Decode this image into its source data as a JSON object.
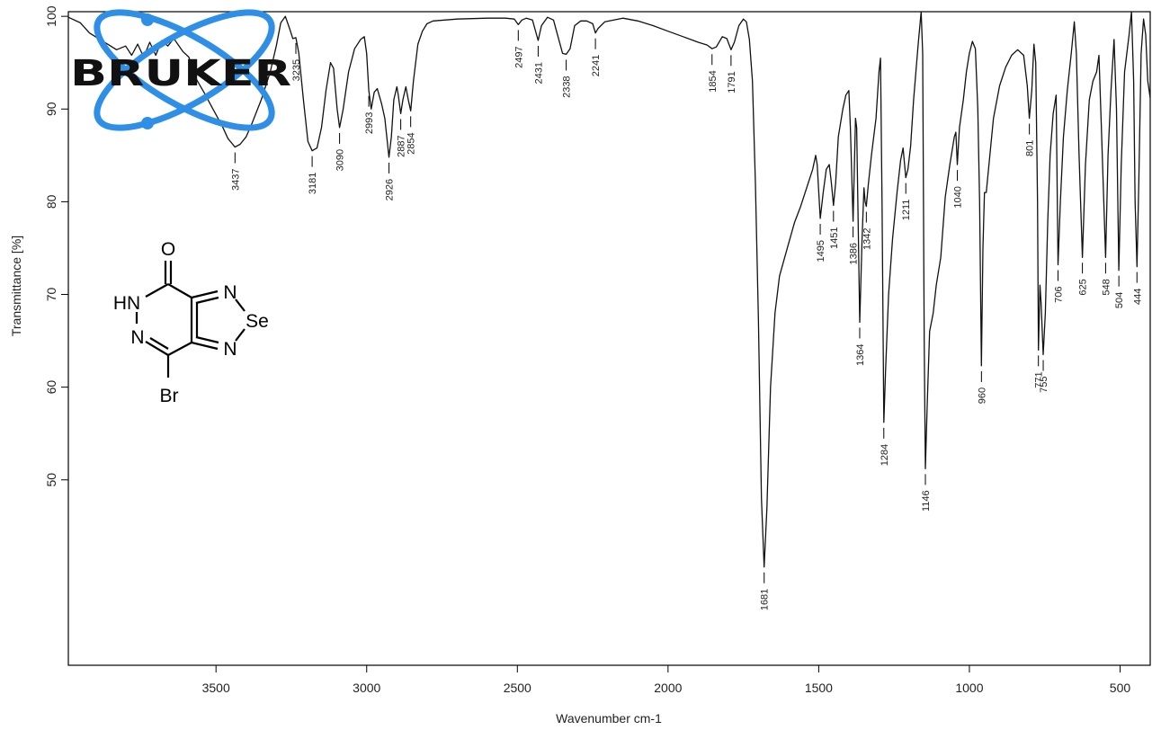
{
  "chart_data": {
    "type": "line",
    "xlabel": "Wavenumber cm-1",
    "ylabel": "Transmittance [%]",
    "xlim": [
      3990,
      400
    ],
    "ylim": [
      30,
      100.5
    ],
    "x_reversed": true,
    "x_ticks": [
      3500,
      3000,
      2500,
      2000,
      1500,
      1000,
      500
    ],
    "y_ticks": [
      50,
      60,
      70,
      80,
      90,
      100
    ],
    "grid": false,
    "series": [
      {
        "points": [
          [
            3990,
            99.9
          ],
          [
            3950,
            99.3
          ],
          [
            3920,
            98.2
          ],
          [
            3890,
            97.6
          ],
          [
            3860,
            97.0
          ],
          [
            3830,
            96.4
          ],
          [
            3800,
            96.8
          ],
          [
            3780,
            95.8
          ],
          [
            3760,
            97.0
          ],
          [
            3740,
            95.6
          ],
          [
            3720,
            97.2
          ],
          [
            3700,
            95.8
          ],
          [
            3680,
            97.4
          ],
          [
            3660,
            96.8
          ],
          [
            3640,
            97.6
          ],
          [
            3610,
            96.2
          ],
          [
            3590,
            95.6
          ],
          [
            3570,
            93.5
          ],
          [
            3540,
            91.8
          ],
          [
            3510,
            90.0
          ],
          [
            3480,
            88.2
          ],
          [
            3460,
            86.8
          ],
          [
            3437,
            85.9
          ],
          [
            3420,
            86.2
          ],
          [
            3400,
            87.0
          ],
          [
            3380,
            88.5
          ],
          [
            3350,
            91.0
          ],
          [
            3320,
            94.0
          ],
          [
            3300,
            96.8
          ],
          [
            3285,
            99.3
          ],
          [
            3270,
            100.0
          ],
          [
            3255,
            98.6
          ],
          [
            3245,
            97.6
          ],
          [
            3235,
            97.7
          ],
          [
            3225,
            96.0
          ],
          [
            3210,
            91.0
          ],
          [
            3195,
            86.5
          ],
          [
            3181,
            85.5
          ],
          [
            3165,
            85.8
          ],
          [
            3150,
            88.0
          ],
          [
            3135,
            92.0
          ],
          [
            3120,
            95.0
          ],
          [
            3110,
            94.4
          ],
          [
            3098,
            90.0
          ],
          [
            3090,
            88.0
          ],
          [
            3078,
            90.0
          ],
          [
            3060,
            94.0
          ],
          [
            3040,
            96.5
          ],
          [
            3020,
            97.5
          ],
          [
            3008,
            97.8
          ],
          [
            3000,
            96.0
          ],
          [
            2993,
            92.0
          ],
          [
            2985,
            90.0
          ],
          [
            2975,
            91.8
          ],
          [
            2965,
            92.2
          ],
          [
            2950,
            90.5
          ],
          [
            2940,
            89.0
          ],
          [
            2926,
            84.8
          ],
          [
            2918,
            87.0
          ],
          [
            2910,
            91.0
          ],
          [
            2900,
            92.4
          ],
          [
            2895,
            91.5
          ],
          [
            2887,
            89.5
          ],
          [
            2880,
            91.0
          ],
          [
            2870,
            92.4
          ],
          [
            2862,
            91.0
          ],
          [
            2854,
            89.8
          ],
          [
            2845,
            93.0
          ],
          [
            2830,
            97.0
          ],
          [
            2815,
            98.4
          ],
          [
            2800,
            99.2
          ],
          [
            2780,
            99.5
          ],
          [
            2700,
            99.7
          ],
          [
            2600,
            99.8
          ],
          [
            2540,
            99.8
          ],
          [
            2510,
            99.7
          ],
          [
            2497,
            99.1
          ],
          [
            2485,
            99.6
          ],
          [
            2470,
            99.8
          ],
          [
            2450,
            99.6
          ],
          [
            2431,
            97.4
          ],
          [
            2420,
            99.0
          ],
          [
            2400,
            99.9
          ],
          [
            2380,
            99.6
          ],
          [
            2365,
            97.8
          ],
          [
            2350,
            96.0
          ],
          [
            2338,
            95.9
          ],
          [
            2325,
            96.5
          ],
          [
            2310,
            99.0
          ],
          [
            2290,
            99.5
          ],
          [
            2270,
            99.5
          ],
          [
            2250,
            99.2
          ],
          [
            2241,
            98.2
          ],
          [
            2232,
            98.7
          ],
          [
            2210,
            99.4
          ],
          [
            2150,
            99.8
          ],
          [
            2100,
            99.5
          ],
          [
            2050,
            99.0
          ],
          [
            2000,
            98.4
          ],
          [
            1950,
            97.8
          ],
          [
            1900,
            97.2
          ],
          [
            1870,
            96.9
          ],
          [
            1854,
            96.5
          ],
          [
            1840,
            96.7
          ],
          [
            1820,
            97.8
          ],
          [
            1805,
            97.6
          ],
          [
            1791,
            96.4
          ],
          [
            1780,
            97.2
          ],
          [
            1765,
            99.0
          ],
          [
            1750,
            99.7
          ],
          [
            1740,
            99.4
          ],
          [
            1730,
            97.5
          ],
          [
            1720,
            93.0
          ],
          [
            1710,
            82.0
          ],
          [
            1700,
            67.0
          ],
          [
            1690,
            48.0
          ],
          [
            1681,
            40.6
          ],
          [
            1672,
            47.0
          ],
          [
            1660,
            60.0
          ],
          [
            1645,
            68.0
          ],
          [
            1630,
            72.0
          ],
          [
            1600,
            75.5
          ],
          [
            1580,
            77.8
          ],
          [
            1560,
            79.5
          ],
          [
            1540,
            81.5
          ],
          [
            1520,
            83.5
          ],
          [
            1510,
            85.0
          ],
          [
            1505,
            84.0
          ],
          [
            1495,
            78.2
          ],
          [
            1485,
            81.0
          ],
          [
            1475,
            83.5
          ],
          [
            1465,
            84.0
          ],
          [
            1458,
            82.0
          ],
          [
            1451,
            79.6
          ],
          [
            1444,
            82.0
          ],
          [
            1435,
            87.0
          ],
          [
            1420,
            90.0
          ],
          [
            1410,
            91.5
          ],
          [
            1400,
            92.0
          ],
          [
            1395,
            88.0
          ],
          [
            1386,
            77.9
          ],
          [
            1378,
            89.0
          ],
          [
            1374,
            88.0
          ],
          [
            1364,
            67.0
          ],
          [
            1356,
            76.0
          ],
          [
            1350,
            81.5
          ],
          [
            1346,
            80.0
          ],
          [
            1342,
            79.5
          ],
          [
            1335,
            82.0
          ],
          [
            1325,
            85.0
          ],
          [
            1310,
            89.0
          ],
          [
            1300,
            94.0
          ],
          [
            1295,
            95.5
          ],
          [
            1290,
            80.0
          ],
          [
            1284,
            56.2
          ],
          [
            1278,
            62.0
          ],
          [
            1268,
            70.0
          ],
          [
            1255,
            76.0
          ],
          [
            1240,
            81.0
          ],
          [
            1228,
            84.5
          ],
          [
            1220,
            85.8
          ],
          [
            1211,
            82.6
          ],
          [
            1204,
            83.5
          ],
          [
            1195,
            86.0
          ],
          [
            1185,
            91.0
          ],
          [
            1170,
            97.0
          ],
          [
            1160,
            100.5
          ],
          [
            1155,
            96.0
          ],
          [
            1150,
            65.0
          ],
          [
            1146,
            51.2
          ],
          [
            1140,
            58.0
          ],
          [
            1132,
            66.0
          ],
          [
            1120,
            68.0
          ],
          [
            1110,
            71.0
          ],
          [
            1095,
            74.0
          ],
          [
            1080,
            80.5
          ],
          [
            1065,
            84.0
          ],
          [
            1050,
            87.0
          ],
          [
            1045,
            87.5
          ],
          [
            1040,
            84.0
          ],
          [
            1033,
            88.0
          ],
          [
            1020,
            91.0
          ],
          [
            1010,
            94.0
          ],
          [
            1000,
            96.0
          ],
          [
            990,
            97.3
          ],
          [
            980,
            96.5
          ],
          [
            972,
            90.0
          ],
          [
            966,
            80.0
          ],
          [
            960,
            62.3
          ],
          [
            955,
            75.0
          ],
          [
            950,
            81.0
          ],
          [
            944,
            81.0
          ],
          [
            935,
            84.0
          ],
          [
            920,
            89.0
          ],
          [
            900,
            92.5
          ],
          [
            880,
            94.5
          ],
          [
            860,
            95.8
          ],
          [
            840,
            96.4
          ],
          [
            820,
            95.8
          ],
          [
            808,
            92.5
          ],
          [
            801,
            89.0
          ],
          [
            793,
            92.0
          ],
          [
            786,
            97.0
          ],
          [
            780,
            95.0
          ],
          [
            774,
            80.0
          ],
          [
            771,
            64.0
          ],
          [
            766,
            71.0
          ],
          [
            762,
            69.0
          ],
          [
            755,
            63.5
          ],
          [
            748,
            68.0
          ],
          [
            740,
            78.0
          ],
          [
            732,
            85.0
          ],
          [
            722,
            89.5
          ],
          [
            712,
            91.5
          ],
          [
            706,
            73.2
          ],
          [
            698,
            80.0
          ],
          [
            688,
            87.0
          ],
          [
            675,
            92.0
          ],
          [
            662,
            96.0
          ],
          [
            652,
            99.4
          ],
          [
            645,
            96.0
          ],
          [
            636,
            85.0
          ],
          [
            625,
            74.0
          ],
          [
            615,
            84.0
          ],
          [
            602,
            91.0
          ],
          [
            590,
            93.0
          ],
          [
            578,
            94.0
          ],
          [
            570,
            95.8
          ],
          [
            562,
            88.0
          ],
          [
            548,
            74.0
          ],
          [
            540,
            85.0
          ],
          [
            530,
            92.0
          ],
          [
            520,
            97.5
          ],
          [
            512,
            90.0
          ],
          [
            504,
            72.6
          ],
          [
            496,
            84.0
          ],
          [
            485,
            94.0
          ],
          [
            470,
            98.0
          ],
          [
            462,
            100.5
          ],
          [
            455,
            93.0
          ],
          [
            450,
            80.0
          ],
          [
            444,
            73.0
          ],
          [
            438,
            82.0
          ],
          [
            430,
            96.0
          ],
          [
            422,
            99.7
          ],
          [
            415,
            98.0
          ],
          [
            408,
            93.0
          ],
          [
            400,
            91.2
          ]
        ]
      }
    ],
    "peaks": [
      {
        "x": 3437,
        "y": 85.9,
        "label": "3437"
      },
      {
        "x": 3235,
        "y": 97.7,
        "label": "3235"
      },
      {
        "x": 3181,
        "y": 85.5,
        "label": "3181"
      },
      {
        "x": 3090,
        "y": 88.0,
        "label": "3090"
      },
      {
        "x": 2993,
        "y": 92.0,
        "label": "2993"
      },
      {
        "x": 2926,
        "y": 84.8,
        "label": "2926"
      },
      {
        "x": 2887,
        "y": 89.5,
        "label": "2887"
      },
      {
        "x": 2854,
        "y": 89.8,
        "label": "2854"
      },
      {
        "x": 2497,
        "y": 99.1,
        "label": "2497"
      },
      {
        "x": 2431,
        "y": 97.4,
        "label": "2431"
      },
      {
        "x": 2338,
        "y": 95.9,
        "label": "2338"
      },
      {
        "x": 2241,
        "y": 98.2,
        "label": "2241"
      },
      {
        "x": 1854,
        "y": 96.5,
        "label": "1854"
      },
      {
        "x": 1791,
        "y": 96.4,
        "label": "1791"
      },
      {
        "x": 1681,
        "y": 40.6,
        "label": "1681"
      },
      {
        "x": 1495,
        "y": 78.2,
        "label": "1495"
      },
      {
        "x": 1451,
        "y": 79.6,
        "label": "1451"
      },
      {
        "x": 1386,
        "y": 77.9,
        "label": "1386"
      },
      {
        "x": 1364,
        "y": 67.0,
        "label": "1364"
      },
      {
        "x": 1342,
        "y": 79.5,
        "label": "1342"
      },
      {
        "x": 1284,
        "y": 56.2,
        "label": "1284"
      },
      {
        "x": 1211,
        "y": 82.6,
        "label": "1211"
      },
      {
        "x": 1146,
        "y": 51.2,
        "label": "1146"
      },
      {
        "x": 1040,
        "y": 84.0,
        "label": "1040"
      },
      {
        "x": 960,
        "y": 62.3,
        "label": "960"
      },
      {
        "x": 801,
        "y": 89.0,
        "label": "801"
      },
      {
        "x": 771,
        "y": 64.0,
        "label": "771"
      },
      {
        "x": 755,
        "y": 63.5,
        "label": "755"
      },
      {
        "x": 706,
        "y": 73.2,
        "label": "706"
      },
      {
        "x": 625,
        "y": 74.0,
        "label": "625"
      },
      {
        "x": 548,
        "y": 74.0,
        "label": "548"
      },
      {
        "x": 504,
        "y": 72.6,
        "label": "504"
      },
      {
        "x": 444,
        "y": 73.0,
        "label": "444"
      }
    ]
  },
  "logo": {
    "text": "BRUKER",
    "color_ring": "#2f8fe6",
    "color_text": "#111111"
  },
  "molecule": {
    "labels": {
      "oxygen": "O",
      "hn": "HN",
      "n_left": "N",
      "n_top": "N",
      "se": "Se",
      "n_bottom": "N",
      "br": "Br"
    }
  },
  "colors": {
    "line": "#111111",
    "axis": "#000000"
  }
}
